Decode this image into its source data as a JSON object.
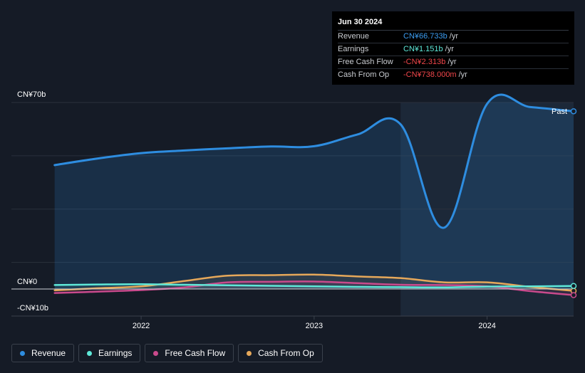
{
  "tooltip": {
    "date": "Jun 30 2024",
    "rows": [
      {
        "label": "Revenue",
        "value": "CN¥66.733b",
        "unit": "/yr",
        "color": "#3b9cf0"
      },
      {
        "label": "Earnings",
        "value": "CN¥1.151b",
        "unit": "/yr",
        "color": "#5ee8d8"
      },
      {
        "label": "Free Cash Flow",
        "value": "-CN¥2.313b",
        "unit": "/yr",
        "color": "#f0464a"
      },
      {
        "label": "Cash From Op",
        "value": "-CN¥738.000m",
        "unit": "/yr",
        "color": "#f0464a"
      }
    ]
  },
  "past_label": "Past",
  "legend": [
    {
      "label": "Revenue",
      "color": "#2e8de0"
    },
    {
      "label": "Earnings",
      "color": "#5ee8d8"
    },
    {
      "label": "Free Cash Flow",
      "color": "#c94a8c"
    },
    {
      "label": "Cash From Op",
      "color": "#e6a85a"
    }
  ],
  "chart_data": {
    "type": "line",
    "ylabel_top": "CN¥70b",
    "ylabel_zero": "CN¥0",
    "ylabel_bottom": "-CN¥10b",
    "ylim": [
      -10,
      70
    ],
    "x_ticks": [
      "2022",
      "2023",
      "2024"
    ],
    "x_tick_values": [
      2022.0,
      2023.0,
      2024.0
    ],
    "xlim": [
      2021.25,
      2024.5
    ],
    "shade_start": 2023.5,
    "series": [
      {
        "name": "Revenue",
        "color": "#2e8de0",
        "x": [
          2021.5,
          2021.75,
          2022.0,
          2022.25,
          2022.5,
          2022.75,
          2023.0,
          2023.25,
          2023.5,
          2023.75,
          2024.0,
          2024.25,
          2024.5
        ],
        "values": [
          46.5,
          49.0,
          51.0,
          52.0,
          52.8,
          53.5,
          53.6,
          58.0,
          61.8,
          23.0,
          69.5,
          68.3,
          66.7
        ]
      },
      {
        "name": "Earnings",
        "color": "#5ee8d8",
        "x": [
          2021.5,
          2021.75,
          2022.0,
          2022.25,
          2022.5,
          2022.75,
          2023.0,
          2023.25,
          2023.5,
          2023.75,
          2024.0,
          2024.25,
          2024.5
        ],
        "values": [
          1.5,
          1.7,
          1.8,
          1.6,
          1.4,
          1.2,
          1.0,
          0.8,
          0.7,
          0.6,
          0.9,
          1.0,
          1.15
        ]
      },
      {
        "name": "Free Cash Flow",
        "color": "#c94a8c",
        "x": [
          2021.5,
          2021.75,
          2022.0,
          2022.25,
          2022.5,
          2022.75,
          2023.0,
          2023.25,
          2023.5,
          2023.75,
          2024.0,
          2024.25,
          2024.5
        ],
        "values": [
          -1.5,
          -1.0,
          -0.4,
          0.6,
          2.5,
          2.7,
          2.8,
          2.2,
          1.6,
          1.5,
          1.0,
          -0.8,
          -2.3
        ]
      },
      {
        "name": "Cash From Op",
        "color": "#e6a85a",
        "x": [
          2021.5,
          2021.75,
          2022.0,
          2022.25,
          2022.5,
          2022.75,
          2023.0,
          2023.25,
          2023.5,
          2023.75,
          2024.0,
          2024.25,
          2024.5
        ],
        "values": [
          -0.5,
          0.3,
          1.0,
          3.0,
          5.0,
          5.2,
          5.4,
          4.7,
          4.1,
          2.5,
          2.5,
          0.8,
          -0.7
        ]
      }
    ]
  }
}
